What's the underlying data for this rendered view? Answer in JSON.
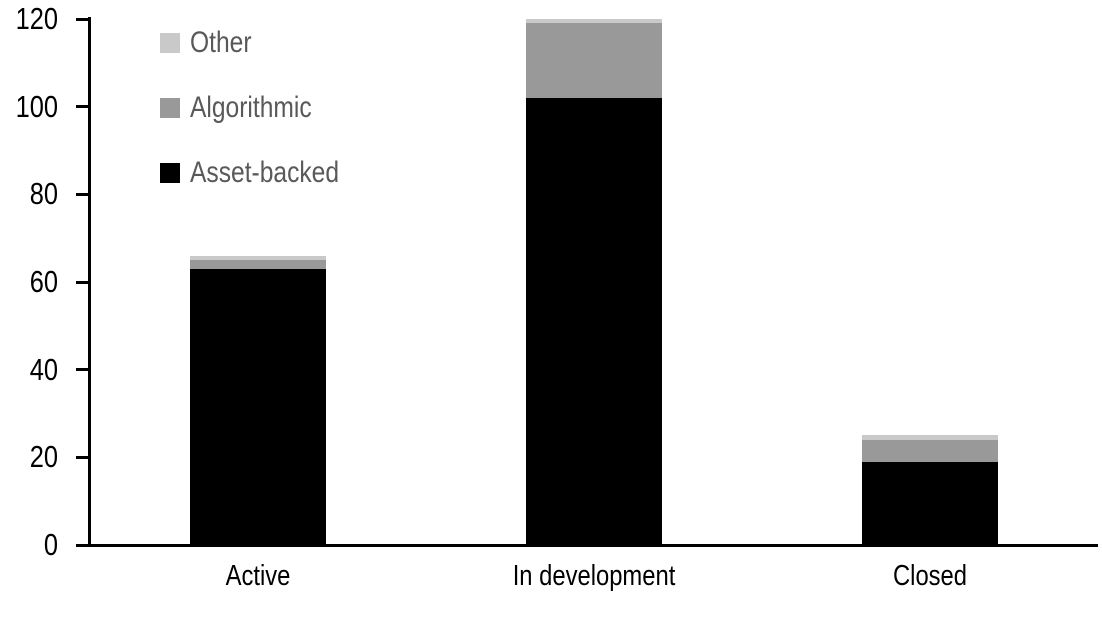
{
  "chart_data": {
    "type": "bar",
    "stacked": true,
    "title": "",
    "xlabel": "",
    "ylabel": "",
    "categories": [
      "Active",
      "In development",
      "Closed"
    ],
    "series": [
      {
        "name": "Asset-backed",
        "color": "#000000",
        "values": [
          63,
          102,
          19
        ]
      },
      {
        "name": "Algorithmic",
        "color": "#999999",
        "values": [
          2,
          17,
          5
        ]
      },
      {
        "name": "Other",
        "color": "#c9c9c9",
        "values": [
          1,
          1,
          1
        ]
      }
    ],
    "totals": [
      66,
      120,
      25
    ],
    "ylim": [
      0,
      120
    ],
    "yticks": [
      0,
      20,
      40,
      60,
      80,
      100,
      120
    ],
    "grid": false,
    "legend": {
      "position": "top-left",
      "order_top_to_bottom": [
        "Other",
        "Algorithmic",
        "Asset-backed"
      ],
      "text_color": "#595959"
    },
    "axis_color": "#000000",
    "background_color": "#ffffff"
  }
}
